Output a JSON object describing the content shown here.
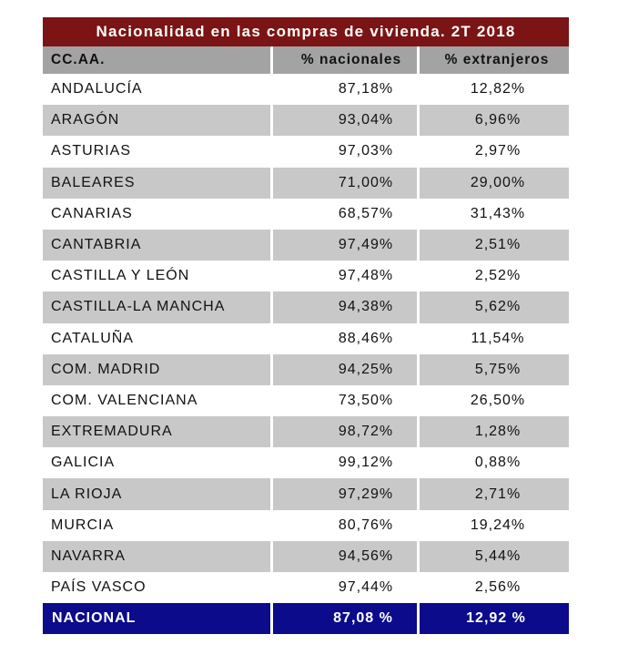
{
  "table": {
    "title": "Nacionalidad en las compras de vivienda. 2T 2018",
    "headers": [
      "CC.AA.",
      "% nacionales",
      "% extranjeros"
    ],
    "rows": [
      {
        "region": "ANDALUCÍA",
        "nacionales": "87,18%",
        "extranjeros": "12,82%"
      },
      {
        "region": "ARAGÓN",
        "nacionales": "93,04%",
        "extranjeros": "6,96%"
      },
      {
        "region": "ASTURIAS",
        "nacionales": "97,03%",
        "extranjeros": "2,97%"
      },
      {
        "region": "BALEARES",
        "nacionales": "71,00%",
        "extranjeros": "29,00%"
      },
      {
        "region": "CANARIAS",
        "nacionales": "68,57%",
        "extranjeros": "31,43%"
      },
      {
        "region": "CANTABRIA",
        "nacionales": "97,49%",
        "extranjeros": "2,51%"
      },
      {
        "region": "CASTILLA Y LEÓN",
        "nacionales": "97,48%",
        "extranjeros": "2,52%"
      },
      {
        "region": "CASTILLA-LA MANCHA",
        "nacionales": "94,38%",
        "extranjeros": "5,62%"
      },
      {
        "region": "CATALUÑA",
        "nacionales": "88,46%",
        "extranjeros": "11,54%"
      },
      {
        "region": "COM. MADRID",
        "nacionales": "94,25%",
        "extranjeros": "5,75%"
      },
      {
        "region": "COM. VALENCIANA",
        "nacionales": "73,50%",
        "extranjeros": "26,50%"
      },
      {
        "region": "EXTREMADURA",
        "nacionales": "98,72%",
        "extranjeros": "1,28%"
      },
      {
        "region": "GALICIA",
        "nacionales": "99,12%",
        "extranjeros": "0,88%"
      },
      {
        "region": "LA RIOJA",
        "nacionales": "97,29%",
        "extranjeros": "2,71%"
      },
      {
        "region": "MURCIA",
        "nacionales": "80,76%",
        "extranjeros": "19,24%"
      },
      {
        "region": "NAVARRA",
        "nacionales": "94,56%",
        "extranjeros": "5,44%"
      },
      {
        "region": "PAÍS VASCO",
        "nacionales": "97,44%",
        "extranjeros": "2,56%"
      }
    ],
    "total": {
      "region": "NACIONAL",
      "nacionales": "87,08 %",
      "extranjeros": "12,92 %"
    }
  },
  "colors": {
    "title_bg": "#7b1414",
    "header_bg": "#a3a3a3",
    "shade_bg": "#c8c8c8",
    "total_bg": "#0b0b8c"
  }
}
